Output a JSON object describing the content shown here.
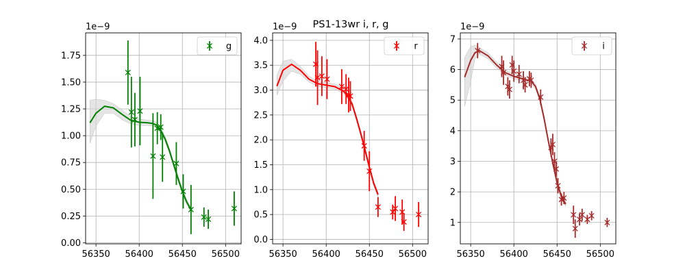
{
  "title": "PS1-13wr  i, r, g",
  "chart_data": [
    {
      "type": "scatter",
      "band": "g",
      "color": "#008000",
      "title": "",
      "xlabel": "",
      "ylabel": "",
      "offset_text": "1e−9",
      "xlim": [
        56338,
        56518
      ],
      "ylim": [
        -0.01,
        1.96
      ],
      "xticks": [
        56350,
        56400,
        56450,
        56500
      ],
      "yticks": [
        0.0,
        0.25,
        0.5,
        0.75,
        1.0,
        1.25,
        1.5,
        1.75
      ],
      "ytick_labels": [
        "0.00",
        "0.25",
        "0.50",
        "0.75",
        "1.00",
        "1.25",
        "1.50",
        "1.75"
      ],
      "grid": true,
      "legend": {
        "label": "g",
        "position": "top-right"
      },
      "points": [
        {
          "x": 56387,
          "y": 1.59,
          "err": 0.3
        },
        {
          "x": 56391,
          "y": 1.22,
          "err": 0.33
        },
        {
          "x": 56395,
          "y": 1.15,
          "err": 0.25
        },
        {
          "x": 56401,
          "y": 1.23,
          "err": 0.32
        },
        {
          "x": 56416,
          "y": 0.81,
          "err": 0.4
        },
        {
          "x": 56421,
          "y": 1.07,
          "err": 0.15
        },
        {
          "x": 56425,
          "y": 1.08,
          "err": 0.12
        },
        {
          "x": 56427,
          "y": 0.8,
          "err": 0.23
        },
        {
          "x": 56443,
          "y": 0.74,
          "err": 0.2
        },
        {
          "x": 56451,
          "y": 0.48,
          "err": 0.16
        },
        {
          "x": 56460,
          "y": 0.31,
          "err": 0.23
        },
        {
          "x": 56475,
          "y": 0.24,
          "err": 0.09
        },
        {
          "x": 56480,
          "y": 0.22,
          "err": 0.09
        },
        {
          "x": 56510,
          "y": 0.32,
          "err": 0.16
        }
      ],
      "model": {
        "x": [
          56343,
          56350,
          56360,
          56370,
          56380,
          56390,
          56400,
          56410,
          56415,
          56420,
          56425,
          56430,
          56435,
          56440,
          56445,
          56450,
          56455,
          56460
        ],
        "y": [
          1.12,
          1.21,
          1.275,
          1.26,
          1.2,
          1.145,
          1.125,
          1.12,
          1.115,
          1.1,
          1.05,
          0.97,
          0.86,
          0.73,
          0.6,
          0.48,
          0.38,
          0.31
        ]
      },
      "band_region": {
        "x": [
          56343,
          56350,
          56360,
          56370,
          56380,
          56390,
          56400,
          56410,
          56415,
          56420,
          56425,
          56430,
          56435,
          56440,
          56445,
          56450,
          56455,
          56460
        ],
        "lo": [
          0.93,
          1.09,
          1.21,
          1.21,
          1.15,
          1.11,
          1.095,
          1.095,
          1.09,
          1.075,
          1.02,
          0.945,
          0.835,
          0.705,
          0.575,
          0.455,
          0.355,
          0.29
        ],
        "hi": [
          1.33,
          1.34,
          1.33,
          1.3,
          1.24,
          1.18,
          1.155,
          1.145,
          1.14,
          1.125,
          1.08,
          0.995,
          0.885,
          0.755,
          0.625,
          0.505,
          0.405,
          0.33
        ]
      }
    },
    {
      "type": "scatter",
      "band": "r",
      "color": "#ff0000",
      "title": "",
      "xlabel": "",
      "ylabel": "",
      "offset_text": "1e−9",
      "xlim": [
        56338,
        56518
      ],
      "ylim": [
        -0.09,
        4.15
      ],
      "xticks": [
        56350,
        56400,
        56450,
        56500
      ],
      "yticks": [
        0.0,
        0.5,
        1.0,
        1.5,
        2.0,
        2.5,
        3.0,
        3.5,
        4.0
      ],
      "ytick_labels": [
        "0.0",
        "0.5",
        "1.0",
        "1.5",
        "2.0",
        "2.5",
        "3.0",
        "3.5",
        "4.0"
      ],
      "grid": true,
      "legend": {
        "label": "r",
        "position": "top-right"
      },
      "points": [
        {
          "x": 56388,
          "y": 3.52,
          "err": 0.45
        },
        {
          "x": 56390,
          "y": 3.25,
          "err": 0.55
        },
        {
          "x": 56395,
          "y": 3.28,
          "err": 0.4
        },
        {
          "x": 56401,
          "y": 3.22,
          "err": 0.4
        },
        {
          "x": 56418,
          "y": 3.07,
          "err": 0.35
        },
        {
          "x": 56423,
          "y": 3.02,
          "err": 0.3
        },
        {
          "x": 56426,
          "y": 2.9,
          "err": 0.35
        },
        {
          "x": 56428,
          "y": 2.88,
          "err": 0.3
        },
        {
          "x": 56444,
          "y": 1.88,
          "err": 0.3
        },
        {
          "x": 56450,
          "y": 1.37,
          "err": 0.4
        },
        {
          "x": 56460,
          "y": 0.65,
          "err": 0.2
        },
        {
          "x": 56477,
          "y": 0.55,
          "err": 0.15
        },
        {
          "x": 56480,
          "y": 0.62,
          "err": 0.25
        },
        {
          "x": 56488,
          "y": 0.55,
          "err": 0.25
        },
        {
          "x": 56490,
          "y": 0.35,
          "err": 0.18
        },
        {
          "x": 56507,
          "y": 0.5,
          "err": 0.25
        }
      ],
      "model": {
        "x": [
          56343,
          56350,
          56360,
          56370,
          56380,
          56390,
          56400,
          56410,
          56420,
          56425,
          56430,
          56435,
          56440,
          56445,
          56450,
          56455,
          56460
        ],
        "y": [
          3.08,
          3.4,
          3.52,
          3.4,
          3.22,
          3.13,
          3.1,
          3.07,
          2.98,
          2.88,
          2.72,
          2.44,
          2.13,
          1.8,
          1.45,
          1.13,
          0.9
        ]
      },
      "band_region": {
        "x": [
          56343,
          56350,
          56360,
          56370,
          56380,
          56390,
          56400,
          56410,
          56420,
          56425,
          56430,
          56435,
          56440,
          56445,
          56450,
          56455,
          56460
        ],
        "lo": [
          2.9,
          3.18,
          3.38,
          3.32,
          3.16,
          3.08,
          3.05,
          3.02,
          2.93,
          2.83,
          2.67,
          2.39,
          2.08,
          1.75,
          1.4,
          1.08,
          0.85
        ],
        "hi": [
          3.3,
          3.58,
          3.62,
          3.48,
          3.28,
          3.18,
          3.15,
          3.12,
          3.03,
          2.93,
          2.77,
          2.49,
          2.18,
          1.85,
          1.5,
          1.18,
          0.95
        ]
      }
    },
    {
      "type": "scatter",
      "band": "i",
      "color": "#a52a2a",
      "title": "",
      "xlabel": "",
      "ylabel": "",
      "offset_text": "1e−9",
      "xlim": [
        56338,
        56518
      ],
      "ylim": [
        0.3,
        7.2
      ],
      "xticks": [
        56350,
        56400,
        56450,
        56500
      ],
      "yticks": [
        1,
        2,
        3,
        4,
        5,
        6,
        7
      ],
      "ytick_labels": [
        "1",
        "2",
        "3",
        "4",
        "5",
        "6",
        "7"
      ],
      "grid": true,
      "legend": {
        "label": "i",
        "position": "top-right"
      },
      "points": [
        {
          "x": 56358,
          "y": 6.62,
          "err": 0.25
        },
        {
          "x": 56386,
          "y": 6.1,
          "err": 0.35
        },
        {
          "x": 56388,
          "y": 5.9,
          "err": 0.4
        },
        {
          "x": 56393,
          "y": 5.45,
          "err": 0.3
        },
        {
          "x": 56395,
          "y": 5.35,
          "err": 0.3
        },
        {
          "x": 56398,
          "y": 6.15,
          "err": 0.3
        },
        {
          "x": 56400,
          "y": 5.95,
          "err": 0.35
        },
        {
          "x": 56406,
          "y": 5.85,
          "err": 0.3
        },
        {
          "x": 56411,
          "y": 5.65,
          "err": 0.3
        },
        {
          "x": 56413,
          "y": 5.5,
          "err": 0.25
        },
        {
          "x": 56418,
          "y": 5.7,
          "err": 0.25
        },
        {
          "x": 56420,
          "y": 5.65,
          "err": 0.25
        },
        {
          "x": 56431,
          "y": 5.1,
          "err": 0.25
        },
        {
          "x": 56443,
          "y": 3.45,
          "err": 0.3
        },
        {
          "x": 56445,
          "y": 3.55,
          "err": 0.35
        },
        {
          "x": 56447,
          "y": 3.0,
          "err": 0.3
        },
        {
          "x": 56449,
          "y": 2.75,
          "err": 0.25
        },
        {
          "x": 56451,
          "y": 2.2,
          "err": 0.25
        },
        {
          "x": 56455,
          "y": 1.75,
          "err": 0.2
        },
        {
          "x": 56458,
          "y": 1.8,
          "err": 0.2
        },
        {
          "x": 56469,
          "y": 1.25,
          "err": 0.3
        },
        {
          "x": 56471,
          "y": 0.8,
          "err": 0.3
        },
        {
          "x": 56476,
          "y": 1.1,
          "err": 0.2
        },
        {
          "x": 56479,
          "y": 1.25,
          "err": 0.2
        },
        {
          "x": 56485,
          "y": 1.1,
          "err": 0.15
        },
        {
          "x": 56490,
          "y": 1.22,
          "err": 0.15
        },
        {
          "x": 56508,
          "y": 1.0,
          "err": 0.15
        }
      ],
      "model": {
        "x": [
          56343,
          56350,
          56355,
          56360,
          56370,
          56380,
          56390,
          56400,
          56410,
          56420,
          56425,
          56430,
          56435,
          56440,
          56445,
          56450,
          56455,
          56460
        ],
        "y": [
          5.75,
          6.3,
          6.55,
          6.62,
          6.45,
          6.15,
          5.9,
          5.78,
          5.7,
          5.62,
          5.45,
          5.05,
          4.4,
          3.65,
          2.95,
          2.3,
          1.85,
          1.6
        ]
      },
      "band_region": {
        "x": [
          56343,
          56350,
          56355,
          56360,
          56370,
          56380,
          56390,
          56400,
          56410,
          56420,
          56425,
          56430,
          56435,
          56440,
          56445,
          56450,
          56455,
          56460
        ],
        "lo": [
          4.8,
          5.6,
          6.35,
          6.5,
          6.35,
          6.05,
          5.82,
          5.7,
          5.62,
          5.54,
          5.37,
          4.97,
          4.32,
          3.57,
          2.87,
          2.22,
          1.77,
          1.52
        ],
        "hi": [
          6.4,
          6.75,
          6.8,
          6.72,
          6.55,
          6.25,
          5.98,
          5.86,
          5.78,
          5.7,
          5.53,
          5.13,
          4.48,
          3.73,
          3.03,
          2.38,
          1.93,
          1.68
        ]
      }
    }
  ]
}
